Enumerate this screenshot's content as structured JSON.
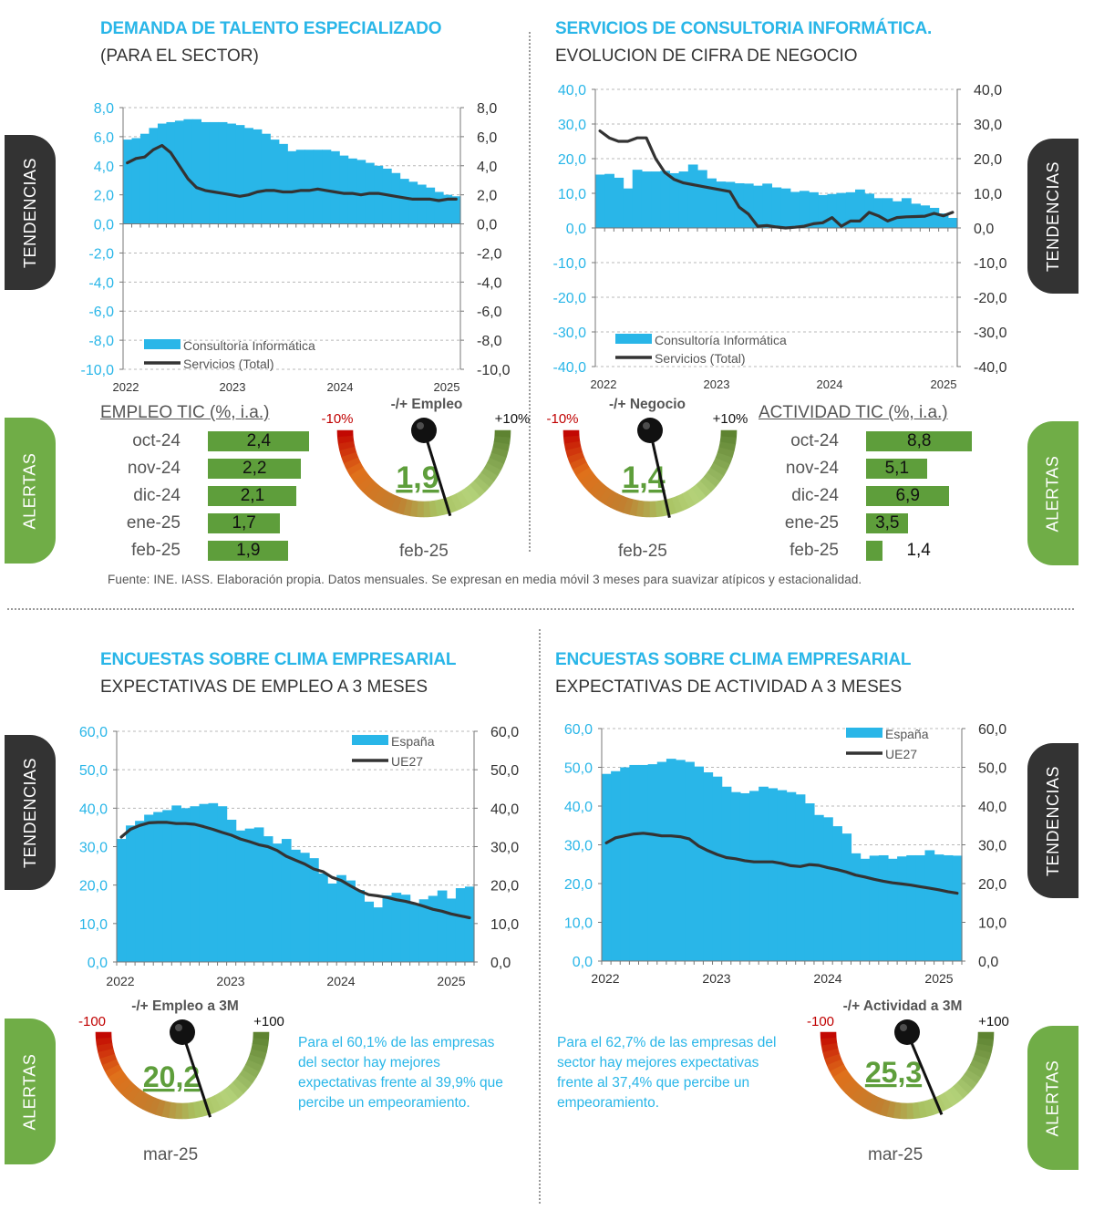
{
  "panels": {
    "p1": {
      "title": "DEMANDA DE TALENTO ESPECIALIZADO",
      "subtitle": "(PARA EL SECTOR)"
    },
    "p2": {
      "title": "SERVICIOS DE CONSULTORIA INFORMÁTICA.",
      "subtitle": "EVOLUCION DE CIFRA DE NEGOCIO"
    },
    "p3": {
      "title": "ENCUESTAS SOBRE CLIMA EMPRESARIAL",
      "subtitle": "EXPECTATIVAS DE EMPLEO A 3 MESES"
    },
    "p4": {
      "title": "ENCUESTAS SOBRE CLIMA EMPRESARIAL",
      "subtitle": "EXPECTATIVAS DE ACTIVIDAD A 3 MESES"
    }
  },
  "side_tabs": {
    "tendencias": "TENDENCIAS",
    "alertas": "ALERTAS"
  },
  "source_note": "Fuente: INE. IASS. Elaboración propia. Datos mensuales. Se expresan en media móvil 3 meses  para suavizar atípicos y estacionalidad.",
  "colors": {
    "accent_blue": "#29B6E8",
    "line_dark": "#333333",
    "tab_dark": "#333333",
    "tab_green": "#70AD47",
    "bar_green": "#5E9E3B",
    "gauge_value_green": "#5E9E3B",
    "negative_red": "#C00000"
  },
  "tables": {
    "empleo": {
      "header": "EMPLEO TIC (%, i.a.)",
      "max": 2.5,
      "rows": [
        {
          "label": "oct-24",
          "value": 2.4,
          "text": "2,4"
        },
        {
          "label": "nov-24",
          "value": 2.2,
          "text": "2,2"
        },
        {
          "label": "dic-24",
          "value": 2.1,
          "text": "2,1"
        },
        {
          "label": "ene-25",
          "value": 1.7,
          "text": "1,7"
        },
        {
          "label": "feb-25",
          "value": 1.9,
          "text": "1,9"
        }
      ]
    },
    "actividad": {
      "header": "ACTIVIDAD TIC (%, i.a.)",
      "max": 8.8,
      "rows": [
        {
          "label": "oct-24",
          "value": 8.8,
          "text": "8,8"
        },
        {
          "label": "nov-24",
          "value": 5.1,
          "text": "5,1"
        },
        {
          "label": "dic-24",
          "value": 6.9,
          "text": "6,9"
        },
        {
          "label": "ene-25",
          "value": 3.5,
          "text": "3,5"
        },
        {
          "label": "feb-25",
          "value": 1.4,
          "text": "1,4"
        }
      ]
    }
  },
  "gauges": {
    "g1": {
      "title": "-/+ Empleo",
      "min_label": "-10%",
      "max_label": "+10%",
      "min": -10,
      "max": 10,
      "value": 1.9,
      "value_text": "1,9",
      "date": "feb-25"
    },
    "g2": {
      "title": "-/+ Negocio",
      "min_label": "-10%",
      "max_label": "+10%",
      "min": -10,
      "max": 10,
      "value": 1.4,
      "value_text": "1,4",
      "date": "feb-25"
    },
    "g3": {
      "title": "-/+ Empleo a 3M",
      "min_label": "-100",
      "max_label": "+100",
      "min": -100,
      "max": 100,
      "value": 20.2,
      "value_text": "20,2",
      "date": "mar-25"
    },
    "g4": {
      "title": "-/+ Actividad a 3M",
      "min_label": "-100",
      "max_label": "+100",
      "min": -100,
      "max": 100,
      "value": 25.3,
      "value_text": "25,3",
      "date": "mar-25"
    }
  },
  "notes": {
    "empleo": "Para el 60,1% de las empresas del sector hay mejores expectativas frente al 39,9% que percibe un empeoramiento.",
    "actividad": "Para el 62,7% de las empresas del sector hay mejores expectativas frente al 37,4% que percibe un empeoramiento."
  },
  "chart_data": [
    {
      "id": "c1",
      "type": "bar+line",
      "ylim": [
        -10,
        8
      ],
      "yticks": [
        8,
        6,
        4,
        2,
        0,
        -2,
        -4,
        -6,
        -8,
        -10
      ],
      "ytick_labels": [
        "8,0",
        "6,0",
        "4,0",
        "2,0",
        "0,0",
        "-2,0",
        "-4,0",
        "-6,0",
        "-8,0",
        "-10,0"
      ],
      "x_labels": [
        "2022",
        "2023",
        "2024",
        "2025"
      ],
      "bars": {
        "name": "Consultoría Informática",
        "values": [
          5.8,
          5.9,
          6.2,
          6.6,
          6.9,
          7.0,
          7.1,
          7.2,
          7.2,
          7.0,
          7.0,
          7.0,
          6.9,
          6.8,
          6.6,
          6.5,
          6.2,
          5.8,
          5.5,
          5.0,
          5.1,
          5.1,
          5.1,
          5.1,
          5.0,
          4.7,
          4.5,
          4.4,
          4.2,
          4.0,
          3.8,
          3.5,
          3.1,
          2.9,
          2.7,
          2.5,
          2.2,
          2.0,
          1.9
        ]
      },
      "line": {
        "name": "Servicios (Total)",
        "values": [
          4.2,
          4.5,
          4.6,
          5.1,
          5.4,
          4.9,
          4.0,
          3.1,
          2.5,
          2.3,
          2.2,
          2.1,
          2.0,
          1.9,
          2.0,
          2.2,
          2.3,
          2.3,
          2.2,
          2.2,
          2.3,
          2.3,
          2.4,
          2.3,
          2.2,
          2.1,
          2.1,
          2.0,
          2.1,
          2.1,
          2.0,
          1.9,
          1.8,
          1.7,
          1.7,
          1.7,
          1.6,
          1.7,
          1.7
        ]
      }
    },
    {
      "id": "c2",
      "type": "bar+line",
      "ylim": [
        -40,
        40
      ],
      "yticks": [
        40,
        30,
        20,
        10,
        0,
        -10,
        -20,
        -30,
        -40
      ],
      "ytick_labels": [
        "40,0",
        "30,0",
        "20,0",
        "10,0",
        "0,0",
        "-10,0",
        "-20,0",
        "-30,0",
        "-40,0"
      ],
      "x_labels": [
        "2022",
        "2023",
        "2024",
        "2025"
      ],
      "bars": {
        "name": "Consultoría Informática",
        "values": [
          15.4,
          15.6,
          14.5,
          11.4,
          16.8,
          16.3,
          16.3,
          16.5,
          15.8,
          16.3,
          18.3,
          16.7,
          14.3,
          13.4,
          13.3,
          12.9,
          12.8,
          12.2,
          12.8,
          11.7,
          11.4,
          10.4,
          10.7,
          10.3,
          9.5,
          9.8,
          10.1,
          10.3,
          11.1,
          9.9,
          8.6,
          8.6,
          7.7,
          8.6,
          7.0,
          6.5,
          5.8,
          4.2,
          2.9
        ]
      },
      "line": {
        "name": "Servicios (Total)",
        "values": [
          28.0,
          26.0,
          25.0,
          25.0,
          26.0,
          26.0,
          20.0,
          16.0,
          14.0,
          13.0,
          12.5,
          12.0,
          11.5,
          11.0,
          10.5,
          6.0,
          4.0,
          0.5,
          0.7,
          0.3,
          0.0,
          0.2,
          0.5,
          1.2,
          1.5,
          3.0,
          0.5,
          2.0,
          2.0,
          4.5,
          3.5,
          2.0,
          3.0,
          3.2,
          3.3,
          3.4,
          4.2,
          3.5,
          4.5
        ]
      }
    },
    {
      "id": "c3",
      "type": "bar+line",
      "ylim": [
        0,
        60
      ],
      "yticks": [
        60,
        50,
        40,
        30,
        20,
        10,
        0
      ],
      "ytick_labels": [
        "60,0",
        "50,0",
        "40,0",
        "30,0",
        "20,0",
        "10,0",
        "0,0"
      ],
      "x_labels": [
        "2022",
        "2023",
        "2024",
        "2025"
      ],
      "bars": {
        "name": "España",
        "values": [
          32.0,
          35.5,
          36.7,
          38.3,
          39.0,
          39.5,
          40.7,
          40.0,
          40.5,
          41.1,
          41.3,
          40.5,
          37.0,
          34.2,
          34.7,
          35.0,
          32.7,
          30.8,
          32.0,
          29.2,
          28.4,
          27.0,
          23.0,
          20.4,
          22.6,
          21.2,
          18.7,
          15.7,
          14.2,
          17.3,
          18.0,
          17.5,
          15.3,
          16.3,
          17.2,
          18.6,
          16.5,
          19.2,
          19.6
        ]
      },
      "line": {
        "name": "UE27",
        "values": [
          32.5,
          34.5,
          35.5,
          36.2,
          36.3,
          36.3,
          36.0,
          36.0,
          35.8,
          35.2,
          34.5,
          33.7,
          33.0,
          32.0,
          31.3,
          30.5,
          30.0,
          29.0,
          27.5,
          26.5,
          25.5,
          24.2,
          23.5,
          22.0,
          21.2,
          19.8,
          18.5,
          17.5,
          17.2,
          16.8,
          16.2,
          15.8,
          15.2,
          14.5,
          13.7,
          13.2,
          12.5,
          12.0,
          11.5
        ]
      }
    },
    {
      "id": "c4",
      "type": "bar+line",
      "ylim": [
        0,
        60
      ],
      "yticks": [
        60,
        50,
        40,
        30,
        20,
        10,
        0
      ],
      "ytick_labels": [
        "60,0",
        "50,0",
        "40,0",
        "30,0",
        "20,0",
        "10,0",
        "0,0"
      ],
      "x_labels": [
        "2022",
        "2023",
        "2024",
        "2025"
      ],
      "bars": {
        "name": "España",
        "values": [
          48.3,
          49.0,
          50.0,
          50.6,
          50.6,
          50.8,
          51.4,
          52.2,
          51.9,
          51.4,
          50.2,
          48.7,
          47.6,
          45.0,
          43.6,
          43.3,
          43.9,
          45.0,
          44.6,
          44.1,
          43.6,
          43.0,
          40.7,
          37.7,
          37.1,
          34.8,
          32.9,
          27.8,
          26.4,
          27.2,
          27.3,
          26.4,
          27.0,
          27.3,
          27.3,
          28.6,
          27.5,
          27.3,
          27.2
        ]
      },
      "line": {
        "name": "UE27",
        "values": [
          30.5,
          31.8,
          32.3,
          32.8,
          33.0,
          32.7,
          32.3,
          32.3,
          32.1,
          31.5,
          29.7,
          28.5,
          27.5,
          26.7,
          26.4,
          25.9,
          25.6,
          25.6,
          25.6,
          25.2,
          24.6,
          24.4,
          24.9,
          24.7,
          24.1,
          23.6,
          23.0,
          22.2,
          21.7,
          21.1,
          20.6,
          20.2,
          19.9,
          19.6,
          19.2,
          18.8,
          18.4,
          17.9,
          17.5
        ]
      }
    }
  ]
}
